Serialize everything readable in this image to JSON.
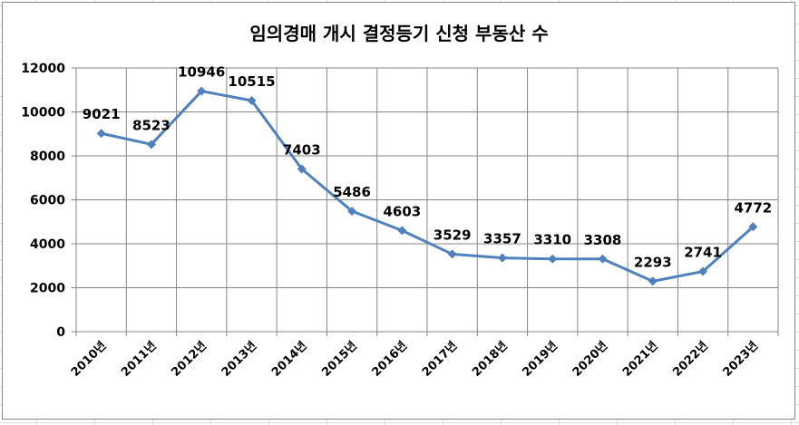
{
  "chart_data": {
    "type": "line",
    "title": "임의경매 개시 결정등기 신청 부동산 수",
    "xlabel": "",
    "ylabel": "",
    "categories": [
      "2010년",
      "2011년",
      "2012년",
      "2013년",
      "2014년",
      "2015년",
      "2016년",
      "2017년",
      "2018년",
      "2019년",
      "2020년",
      "2021년",
      "2022년",
      "2023년"
    ],
    "series": [
      {
        "values": [
          9021,
          8523,
          10946,
          10515,
          7403,
          5486,
          4603,
          3529,
          3357,
          3310,
          3308,
          2293,
          2741,
          4772
        ]
      }
    ],
    "ylim": [
      0,
      12000
    ],
    "yticks": [
      0,
      2000,
      4000,
      6000,
      8000,
      10000,
      12000
    ],
    "grid": true,
    "legend": "none",
    "line_color": "#4f81bd"
  }
}
